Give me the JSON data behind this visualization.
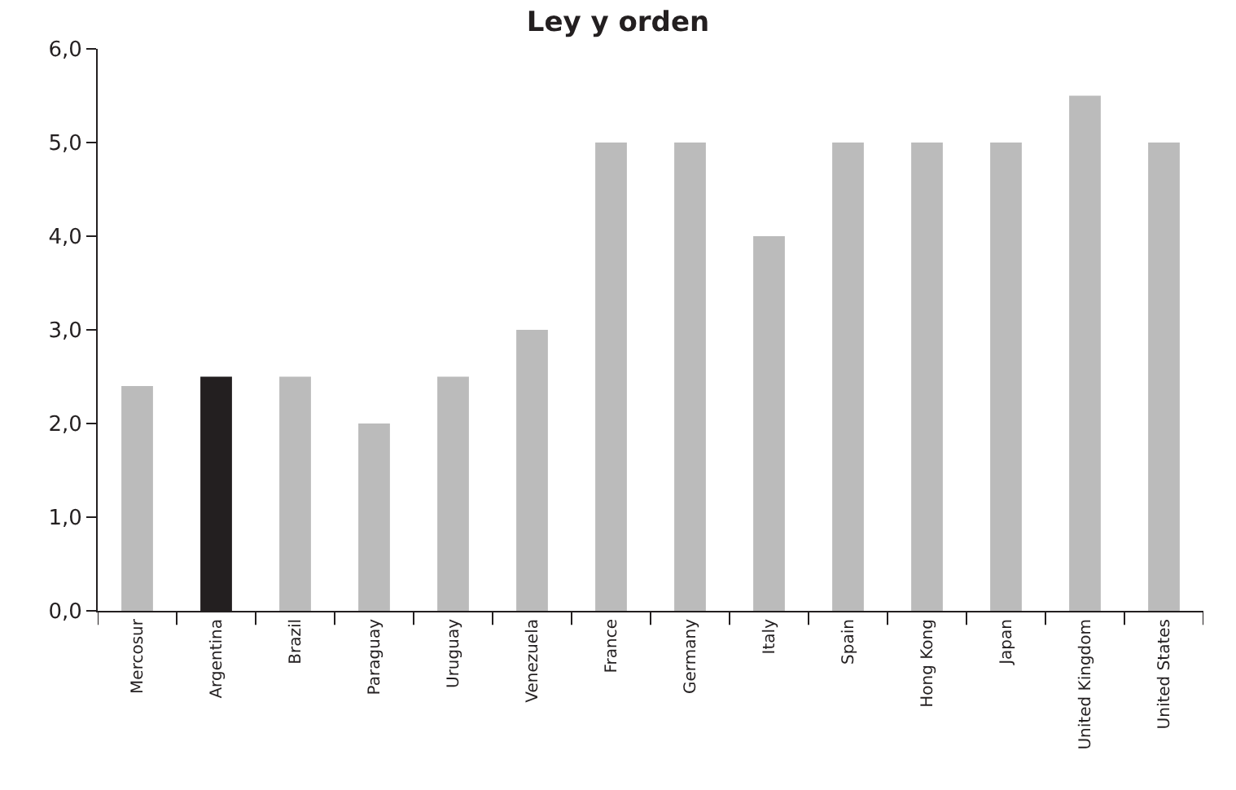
{
  "chart_data": {
    "type": "bar",
    "title": "Ley y orden",
    "categories": [
      "Mercosur",
      "Argentina",
      "Brazil",
      "Paraguay",
      "Uruguay",
      "Venezuela",
      "France",
      "Germany",
      "Italy",
      "Spain",
      "Hong Kong",
      "Japan",
      "United Kingdom",
      "United States"
    ],
    "values": [
      2.4,
      2.5,
      2.5,
      2.0,
      2.5,
      3.0,
      5.0,
      5.0,
      4.0,
      5.0,
      5.0,
      5.0,
      5.5,
      5.0
    ],
    "colors": [
      "#bbbbbb",
      "#231f20",
      "#bbbbbb",
      "#bbbbbb",
      "#bbbbbb",
      "#bbbbbb",
      "#bbbbbb",
      "#bbbbbb",
      "#bbbbbb",
      "#bbbbbb",
      "#bbbbbb",
      "#bbbbbb",
      "#bbbbbb",
      "#bbbbbb"
    ],
    "ylim": [
      0,
      6
    ],
    "yticks": [
      {
        "value": 0,
        "label": "0,0"
      },
      {
        "value": 1,
        "label": "1,0"
      },
      {
        "value": 2,
        "label": "2,0"
      },
      {
        "value": 3,
        "label": "3,0"
      },
      {
        "value": 4,
        "label": "4,0"
      },
      {
        "value": 5,
        "label": "5,0"
      },
      {
        "value": 6,
        "label": "6,0"
      }
    ]
  }
}
